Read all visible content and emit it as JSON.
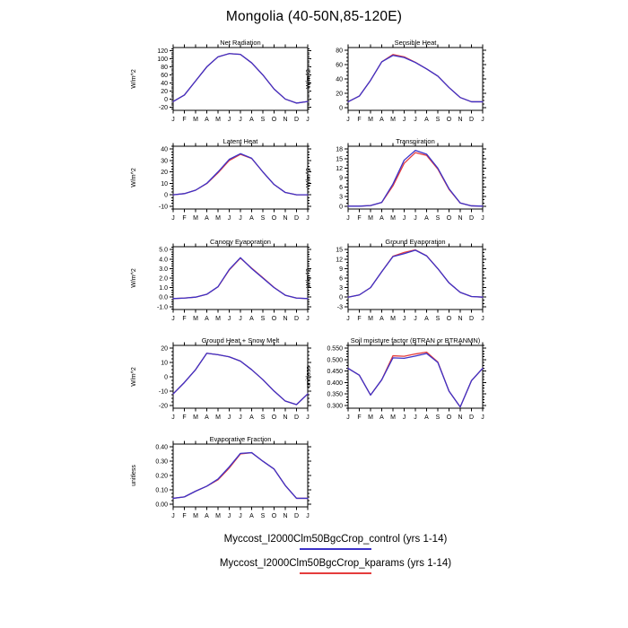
{
  "title": "Mongolia (40-50N,85-120E)",
  "legend": [
    {
      "label": "Myccost_I2000Clm50BgcCrop_control (yrs 1-14)",
      "color": "#3c32c8"
    },
    {
      "label": "Myccost_I2000Clm50BgcCrop_kparams (yrs 1-14)",
      "color": "#e43c3c"
    }
  ],
  "months": [
    "J",
    "F",
    "M",
    "A",
    "M",
    "J",
    "J",
    "A",
    "S",
    "O",
    "N",
    "D",
    "J"
  ],
  "chart_data": [
    {
      "type": "line",
      "id": "net-radiation",
      "title": "Net Radiation",
      "ylabel": "W/m^2",
      "categories": [
        "J",
        "F",
        "M",
        "A",
        "M",
        "J",
        "J",
        "A",
        "S",
        "O",
        "N",
        "D",
        "J"
      ],
      "yticks": [
        -20,
        0,
        20,
        40,
        60,
        80,
        100,
        120
      ],
      "ytick_labels": [
        "-20",
        "0",
        "20",
        "40",
        "60",
        "80",
        "100",
        "120"
      ],
      "ylim": [
        -28,
        128
      ],
      "minor_per_interval": 3,
      "series": [
        {
          "name": "control",
          "color": "#3c32c8",
          "values": [
            -6,
            10,
            45,
            80,
            105,
            113,
            111,
            90,
            60,
            25,
            0,
            -10,
            -6
          ]
        },
        {
          "name": "kparams",
          "color": "#e43c3c",
          "values": [
            -6,
            10,
            45,
            80,
            105,
            113,
            111,
            90,
            60,
            25,
            0,
            -10,
            -6
          ]
        }
      ]
    },
    {
      "type": "line",
      "id": "sensible-heat",
      "title": "Sensible Heat",
      "ylabel": "W/m^2",
      "categories": [
        "J",
        "F",
        "M",
        "A",
        "M",
        "J",
        "J",
        "A",
        "S",
        "O",
        "N",
        "D",
        "J"
      ],
      "yticks": [
        0,
        20,
        40,
        60,
        80
      ],
      "ytick_labels": [
        "0",
        "20",
        "40",
        "60",
        "80"
      ],
      "ylim": [
        -4,
        84
      ],
      "minor_per_interval": 3,
      "series": [
        {
          "name": "control",
          "color": "#3c32c8",
          "values": [
            8,
            16,
            38,
            64,
            73,
            70,
            63,
            54,
            44,
            28,
            14,
            8,
            8
          ]
        },
        {
          "name": "kparams",
          "color": "#e43c3c",
          "values": [
            8,
            16,
            38,
            64,
            74.2,
            71,
            63.3,
            54,
            44,
            28,
            14,
            8,
            8
          ]
        }
      ]
    },
    {
      "type": "line",
      "id": "latent-heat",
      "title": "Latent Heat",
      "ylabel": "W/m^2",
      "categories": [
        "J",
        "F",
        "M",
        "A",
        "M",
        "J",
        "J",
        "A",
        "S",
        "O",
        "N",
        "D",
        "J"
      ],
      "yticks": [
        -10,
        0,
        10,
        20,
        30,
        40
      ],
      "ytick_labels": [
        "-10",
        "0",
        "10",
        "20",
        "30",
        "40"
      ],
      "ylim": [
        -12.5,
        42.5
      ],
      "minor_per_interval": 3,
      "series": [
        {
          "name": "control",
          "color": "#3c32c8",
          "values": [
            0,
            1,
            4,
            10,
            20,
            31,
            36,
            32,
            20,
            9,
            2,
            0,
            0
          ]
        },
        {
          "name": "kparams",
          "color": "#e43c3c",
          "values": [
            0,
            1,
            4,
            9.8,
            19.2,
            30,
            35.4,
            31.8,
            20,
            9,
            2,
            0,
            0
          ]
        }
      ]
    },
    {
      "type": "line",
      "id": "transpiration",
      "title": "Transpiration",
      "ylabel": "W/m^2",
      "categories": [
        "J",
        "F",
        "M",
        "A",
        "M",
        "J",
        "J",
        "A",
        "S",
        "O",
        "N",
        "D",
        "J"
      ],
      "yticks": [
        0,
        3,
        6,
        9,
        12,
        15,
        18
      ],
      "ytick_labels": [
        "0",
        "3",
        "6",
        "9",
        "12",
        "15",
        "18"
      ],
      "ylim": [
        -0.9,
        18.9
      ],
      "minor_per_interval": 2,
      "series": [
        {
          "name": "control",
          "color": "#3c32c8",
          "values": [
            0,
            0,
            0.2,
            1.2,
            7,
            14.5,
            17.6,
            16.4,
            12,
            5.5,
            1,
            0.1,
            0
          ]
        },
        {
          "name": "kparams",
          "color": "#e43c3c",
          "values": [
            0,
            0,
            0.2,
            1.2,
            6.4,
            13.5,
            16.9,
            16,
            11.7,
            5.3,
            1,
            0.1,
            0
          ]
        }
      ]
    },
    {
      "type": "line",
      "id": "canopy-evaporation",
      "title": "Canopy Evaporation",
      "ylabel": "W/m^2",
      "categories": [
        "J",
        "F",
        "M",
        "A",
        "M",
        "J",
        "J",
        "A",
        "S",
        "O",
        "N",
        "D",
        "J"
      ],
      "yticks": [
        -1.0,
        0.0,
        1.0,
        2.0,
        3.0,
        4.0,
        5.0
      ],
      "ytick_labels": [
        "-1.0",
        "0.0",
        "1.0",
        "2.0",
        "3.0",
        "4.0",
        "5.0"
      ],
      "ylim": [
        -1.3,
        5.3
      ],
      "minor_per_interval": 3,
      "series": [
        {
          "name": "control",
          "color": "#3c32c8",
          "values": [
            -0.15,
            -0.1,
            0,
            0.3,
            1.1,
            2.9,
            4.15,
            3,
            2,
            1,
            0.2,
            -0.1,
            -0.15
          ]
        },
        {
          "name": "kparams",
          "color": "#e43c3c",
          "values": [
            -0.15,
            -0.1,
            0,
            0.3,
            1.08,
            2.85,
            4.1,
            3.05,
            2.05,
            1.02,
            0.2,
            -0.1,
            -0.15
          ]
        }
      ]
    },
    {
      "type": "line",
      "id": "ground-evaporation",
      "title": "Ground Evaporation",
      "ylabel": "W/m^2",
      "categories": [
        "J",
        "F",
        "M",
        "A",
        "M",
        "J",
        "J",
        "A",
        "S",
        "O",
        "N",
        "D",
        "J"
      ],
      "yticks": [
        -3,
        0,
        3,
        6,
        9,
        12,
        15
      ],
      "ytick_labels": [
        "-3",
        "0",
        "3",
        "6",
        "9",
        "12",
        "15"
      ],
      "ylim": [
        -3.9,
        15.9
      ],
      "minor_per_interval": 2,
      "series": [
        {
          "name": "control",
          "color": "#3c32c8",
          "values": [
            0,
            0.7,
            3,
            8,
            12.8,
            13.7,
            14.8,
            13,
            9,
            4.5,
            1.5,
            0.2,
            0
          ]
        },
        {
          "name": "kparams",
          "color": "#e43c3c",
          "values": [
            0,
            0.7,
            3,
            8,
            12.9,
            14.1,
            14.9,
            13.05,
            9,
            4.5,
            1.5,
            0.2,
            0
          ]
        }
      ]
    },
    {
      "type": "line",
      "id": "ground-heat-snow-melt",
      "title": "Ground Heat + Snow Melt",
      "ylabel": "W/m^2",
      "categories": [
        "J",
        "F",
        "M",
        "A",
        "M",
        "J",
        "J",
        "A",
        "S",
        "O",
        "N",
        "D",
        "J"
      ],
      "yticks": [
        -20,
        -10,
        0,
        10,
        20
      ],
      "ytick_labels": [
        "-20",
        "-10",
        "0",
        "10",
        "20"
      ],
      "ylim": [
        -22,
        22
      ],
      "minor_per_interval": 3,
      "series": [
        {
          "name": "control",
          "color": "#3c32c8",
          "values": [
            -12,
            -4,
            5,
            16.5,
            15.5,
            14,
            11,
            5,
            -2,
            -10,
            -17,
            -19.5,
            -12
          ]
        },
        {
          "name": "kparams",
          "color": "#e43c3c",
          "values": [
            -12,
            -4,
            5,
            16.5,
            15.5,
            14,
            11,
            5,
            -2,
            -10,
            -17,
            -19.5,
            -12
          ]
        }
      ]
    },
    {
      "type": "line",
      "id": "soil-moisture-factor",
      "title": "Soil moisture factor (BTRAN or BTRANMN)",
      "ylabel": "unitless",
      "categories": [
        "J",
        "F",
        "M",
        "A",
        "M",
        "J",
        "J",
        "A",
        "S",
        "O",
        "N",
        "D",
        "J"
      ],
      "yticks": [
        0.3,
        0.35,
        0.4,
        0.45,
        0.5,
        0.55
      ],
      "ytick_labels": [
        "0.300",
        "0.350",
        "0.400",
        "0.450",
        "0.500",
        "0.550"
      ],
      "ylim": [
        0.2875,
        0.5625
      ],
      "minor_per_interval": 3,
      "series": [
        {
          "name": "control",
          "color": "#3c32c8",
          "values": [
            0.462,
            0.432,
            0.345,
            0.412,
            0.508,
            0.506,
            0.516,
            0.527,
            0.488,
            0.362,
            0.293,
            0.408,
            0.462
          ]
        },
        {
          "name": "kparams",
          "color": "#e43c3c",
          "values": [
            0.462,
            0.432,
            0.345,
            0.412,
            0.517,
            0.515,
            0.525,
            0.533,
            0.49,
            0.362,
            0.293,
            0.408,
            0.462
          ]
        }
      ]
    },
    {
      "type": "line",
      "id": "evaporative-fraction",
      "title": "Evaporative Fraction",
      "ylabel": "unitless",
      "categories": [
        "J",
        "F",
        "M",
        "A",
        "M",
        "J",
        "J",
        "A",
        "S",
        "O",
        "N",
        "D",
        "J"
      ],
      "yticks": [
        0.0,
        0.1,
        0.2,
        0.3,
        0.4
      ],
      "ytick_labels": [
        "0.00",
        "0.10",
        "0.20",
        "0.30",
        "0.40"
      ],
      "ylim": [
        -0.02,
        0.42
      ],
      "minor_per_interval": 3,
      "series": [
        {
          "name": "control",
          "color": "#3c32c8",
          "values": [
            0.04,
            0.05,
            0.09,
            0.125,
            0.175,
            0.26,
            0.355,
            0.36,
            0.3,
            0.245,
            0.13,
            0.04,
            0.04
          ]
        },
        {
          "name": "kparams",
          "color": "#e43c3c",
          "values": [
            0.04,
            0.05,
            0.09,
            0.125,
            0.17,
            0.252,
            0.351,
            0.36,
            0.3,
            0.245,
            0.13,
            0.04,
            0.04
          ]
        }
      ]
    }
  ]
}
